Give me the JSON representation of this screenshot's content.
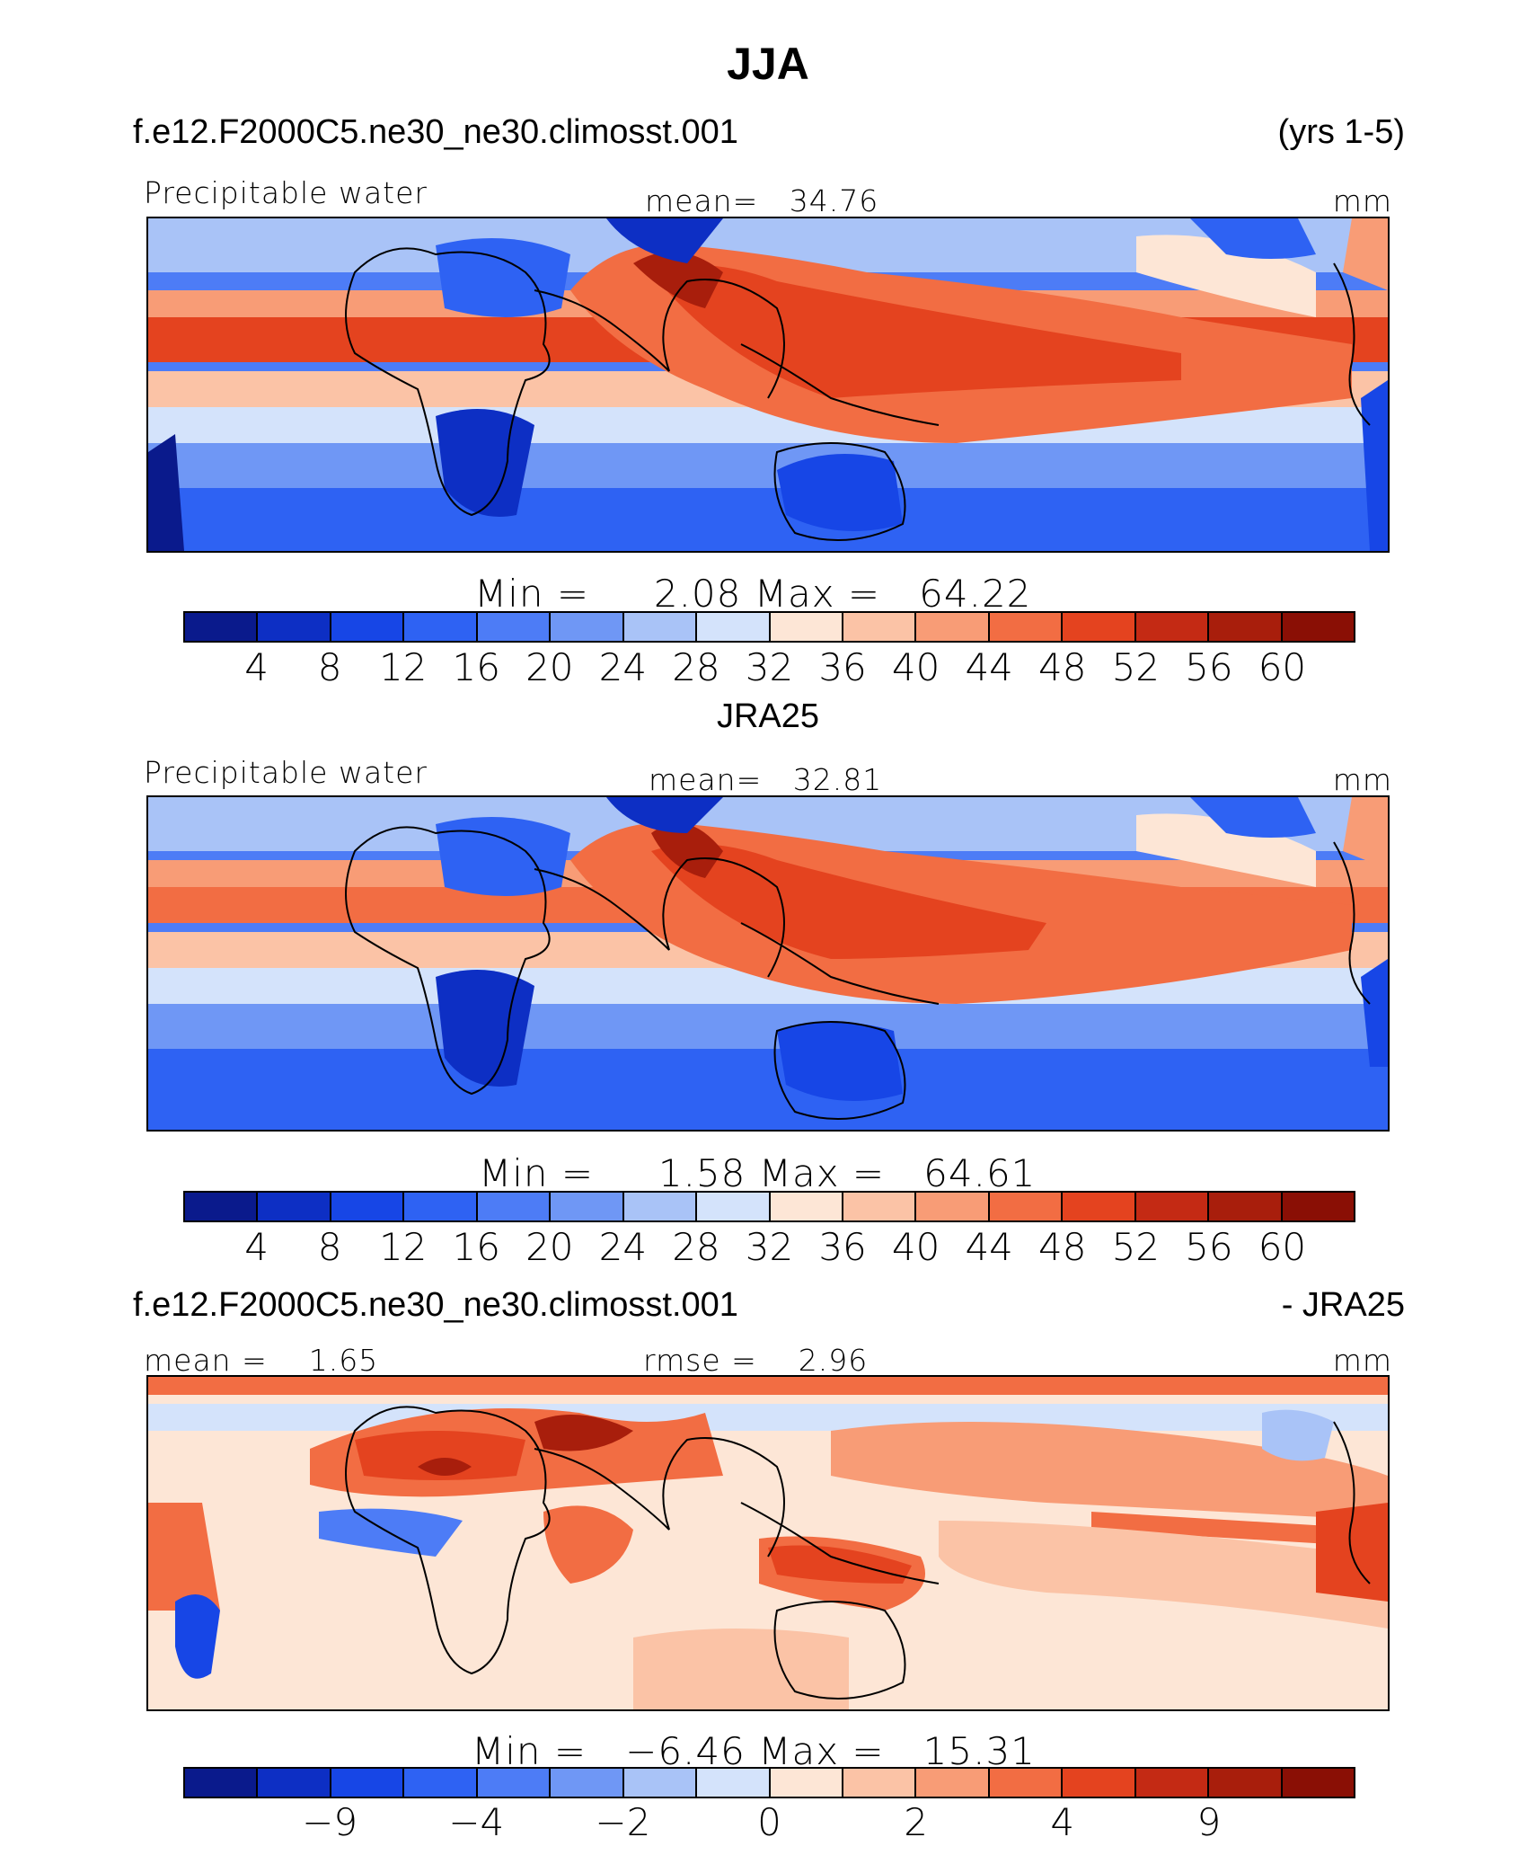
{
  "title": "JJA",
  "case_name": "f.e12.F2000C5.ne30_ne30.climosst.001",
  "years": "(yrs 1-5)",
  "obs_name": "JRA25",
  "diff_suffix": "- JRA25",
  "variable": "Precipitable water",
  "units": "mm",
  "colors": [
    "#0a1a8c",
    "#0d2fc4",
    "#1746e6",
    "#2e62f3",
    "#4d7cf6",
    "#6f97f5",
    "#a9c3f7",
    "#d4e3fb",
    "#fde6d6",
    "#fbc3a6",
    "#f89c76",
    "#f26d43",
    "#e4431f",
    "#c42a14",
    "#a81e0c",
    "#8a0f05"
  ],
  "panels": [
    {
      "id": "model",
      "mean_label": "mean=",
      "mean_value": "34.76",
      "min_label": "Min =",
      "min_value": "2.08",
      "max_label": "Max =",
      "max_value": "64.22",
      "ticks": [
        "4",
        "8",
        "12",
        "16",
        "20",
        "24",
        "28",
        "32",
        "36",
        "40",
        "44",
        "48",
        "52",
        "56",
        "60"
      ]
    },
    {
      "id": "obs",
      "mean_label": "mean=",
      "mean_value": "32.81",
      "min_label": "Min =",
      "min_value": "1.58",
      "max_label": "Max =",
      "max_value": "64.61",
      "ticks": [
        "4",
        "8",
        "12",
        "16",
        "20",
        "24",
        "28",
        "32",
        "36",
        "40",
        "44",
        "48",
        "52",
        "56",
        "60"
      ]
    },
    {
      "id": "diff",
      "mean_label": "mean =",
      "mean_value": "1.65",
      "rmse_label": "rmse =",
      "rmse_value": "2.96",
      "min_label": "Min =",
      "min_value": "−6.46",
      "max_label": "Max =",
      "max_value": "15.31",
      "ticks": [
        "−9",
        "−4",
        "−2",
        "0",
        "2",
        "4",
        "9"
      ]
    }
  ]
}
